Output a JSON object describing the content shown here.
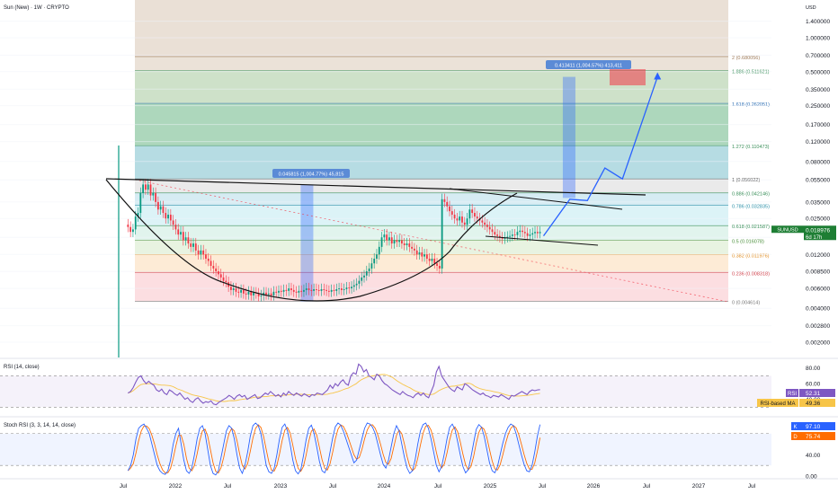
{
  "header": {
    "title": "Sun (New) · 1W · CRYPTO",
    "currency": "USD"
  },
  "colors": {
    "candle_up": "#089981",
    "candle_down": "#f23645",
    "projection": "#2962ff",
    "rsi_line": "#7e57c2",
    "rsi_ma": "#f7c548",
    "stoch_k": "#2962ff",
    "stoch_d": "#ff6d00",
    "price_tag": "#1e7e34"
  },
  "chart_data": [
    {
      "type": "candlestick",
      "title": "Sun (New) · 1W · CRYPTO",
      "y_scale": "log",
      "y_ticks": [
        "1.400000",
        "1.000000",
        "0.700000",
        "0.500000",
        "0.350000",
        "0.250000",
        "0.170000",
        "0.120000",
        "0.080000",
        "0.055000",
        "0.035000",
        "0.025000",
        "0.017000",
        "0.012000",
        "0.008500",
        "0.006000",
        "0.004000",
        "0.002800",
        "0.002000"
      ],
      "x_ticks": [
        "Jul",
        "2022",
        "Jul",
        "2023",
        "Jul",
        "2024",
        "Jul",
        "2025",
        "Jul",
        "2026",
        "Jul",
        "2027",
        "Jul"
      ],
      "last_price": {
        "symbol": "SUNUSD",
        "value": "0.018976",
        "countdown": "6d 17h"
      },
      "fib_levels": [
        {
          "label": "2 (0.680056)",
          "value": 0.680056,
          "fill": "#e8ddd1"
        },
        {
          "label": "1.886 (0.511621)",
          "value": 0.511621,
          "fill": "#c6dcc0"
        },
        {
          "label": "1.618 (0.262051)",
          "value": 0.262051,
          "fill": "#9fd0b0"
        },
        {
          "label": "1.272 (0.110473)",
          "value": 0.110473,
          "fill": "#a9d6de"
        },
        {
          "label": "1 (0.056022)",
          "value": 0.056022,
          "fill": "#e6e6e6"
        },
        {
          "label": "0.886 (0.042146)",
          "value": 0.042146,
          "fill": "#cfe9f1"
        },
        {
          "label": "0.786 (0.032835)",
          "value": 0.032835,
          "fill": "#d6f1f6"
        },
        {
          "label": "0.618 (0.021587)",
          "value": 0.021587,
          "fill": "#dcf2ea"
        },
        {
          "label": "0.5 (0.016078)",
          "value": 0.016078,
          "fill": "#e4f1dc"
        },
        {
          "label": "0.382 (0.011976)",
          "value": 0.011976,
          "fill": "#fde8cf"
        },
        {
          "label": "0.236 (0.008318)",
          "value": 0.008318,
          "fill": "#fcd8dc"
        },
        {
          "label": "0 (0.004614)",
          "value": 0.004614,
          "fill": "#fcd8dc"
        }
      ],
      "fib_label_colors": [
        "#9e7b5a",
        "#3a8f5a",
        "#2b6db3",
        "#3a8f5a",
        "#555555",
        "#3a8f5a",
        "#2b8fa8",
        "#3a8f5a",
        "#4a8f3a",
        "#e08a1a",
        "#d0424c",
        "#777777"
      ],
      "measure_labels": [
        {
          "text": "0.045815 (1,004.77%) 45,815"
        },
        {
          "text": "0.413411 (1,004.57%) 413,411"
        }
      ],
      "candles_close": [
        0.021,
        0.019,
        0.02,
        0.026,
        0.028,
        0.042,
        0.05,
        0.045,
        0.05,
        0.04,
        0.042,
        0.035,
        0.03,
        0.032,
        0.028,
        0.025,
        0.027,
        0.024,
        0.022,
        0.02,
        0.018,
        0.019,
        0.016,
        0.017,
        0.015,
        0.014,
        0.015,
        0.013,
        0.012,
        0.013,
        0.012,
        0.011,
        0.0105,
        0.0095,
        0.009,
        0.0085,
        0.008,
        0.0075,
        0.007,
        0.0068,
        0.0062,
        0.0058,
        0.006,
        0.0056,
        0.0055,
        0.0058,
        0.0054,
        0.0053,
        0.0056,
        0.0052,
        0.0055,
        0.0054,
        0.0051,
        0.0052,
        0.0055,
        0.0053,
        0.0054,
        0.0052,
        0.0056,
        0.0055,
        0.0057,
        0.0056,
        0.0058,
        0.0057,
        0.006,
        0.0058,
        0.0056,
        0.0055,
        0.0057,
        0.0056,
        0.0058,
        0.006,
        0.0058,
        0.0057,
        0.0059,
        0.0058,
        0.0057,
        0.0059,
        0.0058,
        0.0057,
        0.0056,
        0.0058,
        0.0057,
        0.0059,
        0.006,
        0.0058,
        0.0059,
        0.0061,
        0.006,
        0.0062,
        0.0064,
        0.0066,
        0.007,
        0.0075,
        0.0078,
        0.0085,
        0.009,
        0.01,
        0.011,
        0.012,
        0.014,
        0.017,
        0.018,
        0.016,
        0.017,
        0.015,
        0.016,
        0.0155,
        0.016,
        0.015,
        0.0145,
        0.015,
        0.014,
        0.0135,
        0.013,
        0.012,
        0.0125,
        0.0115,
        0.012,
        0.011,
        0.0105,
        0.011,
        0.01,
        0.0095,
        0.009,
        0.037,
        0.035,
        0.032,
        0.029,
        0.027,
        0.025,
        0.024,
        0.026,
        0.023,
        0.022,
        0.025,
        0.03,
        0.028,
        0.026,
        0.025,
        0.024,
        0.023,
        0.022,
        0.021,
        0.02,
        0.019,
        0.018,
        0.0175,
        0.017,
        0.0165,
        0.017,
        0.0172,
        0.0175,
        0.018,
        0.0178,
        0.019,
        0.0195,
        0.019,
        0.0185,
        0.0175,
        0.018,
        0.0185,
        0.019,
        0.0185,
        0.018976
      ],
      "projection_path": [
        {
          "x": "2025-07",
          "y": 0.0175
        },
        {
          "x": "2025-10",
          "y": 0.037
        },
        {
          "x": "2025-12",
          "y": 0.036
        },
        {
          "x": "2026-02",
          "y": 0.07
        },
        {
          "x": "2026-04",
          "y": 0.056
        },
        {
          "x": "2026-08",
          "y": 0.45
        }
      ]
    },
    {
      "type": "line",
      "title": "RSI (14, close)",
      "y_ticks": [
        "80.00",
        "60.00",
        "40.00"
      ],
      "band": [
        30,
        70
      ],
      "series": [
        {
          "name": "RSI",
          "last": "52.31",
          "values": [
            48,
            50,
            55,
            62,
            68,
            70,
            64,
            60,
            63,
            60,
            58,
            52,
            50,
            53,
            48,
            46,
            52,
            50,
            47,
            45,
            48,
            44,
            40,
            42,
            38,
            36,
            40,
            42,
            38,
            35,
            37,
            36,
            38,
            34,
            33,
            36,
            38,
            40,
            42,
            45,
            43,
            40,
            44,
            46,
            43,
            45,
            40,
            42,
            44,
            46,
            41,
            42,
            45,
            48,
            46,
            50,
            47,
            44,
            46,
            43,
            48,
            45,
            50,
            47,
            45,
            48,
            46,
            44,
            47,
            45,
            43,
            46,
            45,
            48,
            47,
            46,
            49,
            52,
            58,
            54,
            60,
            57,
            62,
            65,
            60,
            58,
            70,
            74,
            72,
            85,
            82,
            75,
            78,
            70,
            68,
            65,
            72,
            70,
            64,
            60,
            58,
            55,
            52,
            50,
            48,
            46,
            50,
            47,
            45,
            44,
            42,
            46,
            48,
            45,
            48,
            44,
            42,
            50,
            58,
            75,
            82,
            70,
            65,
            60,
            55,
            52,
            50,
            56,
            54,
            52,
            60,
            58,
            55,
            52,
            50,
            48,
            46,
            48,
            45,
            44,
            42,
            45,
            44,
            43,
            46,
            44,
            42,
            40,
            45,
            44,
            46,
            48,
            50,
            48,
            46,
            50,
            52,
            51,
            52,
            52.31
          ]
        },
        {
          "name": "RSI-based MA",
          "last": "49.36",
          "values": []
        }
      ]
    },
    {
      "type": "line",
      "title": "Stoch RSI (3, 3, 14, 14, close)",
      "y_ticks": [
        "80.00",
        "40.00",
        "0.00"
      ],
      "band": [
        20,
        80
      ],
      "series": [
        {
          "name": "K",
          "last": "97.10",
          "values": [
            10,
            20,
            40,
            70,
            90,
            95,
            98,
            90,
            80,
            60,
            40,
            20,
            10,
            5,
            3,
            10,
            30,
            60,
            80,
            90,
            60,
            30,
            10,
            5,
            15,
            40,
            70,
            90,
            95,
            80,
            50,
            20,
            5,
            2,
            10,
            35,
            60,
            85,
            95,
            90,
            70,
            40,
            15,
            5,
            20,
            45,
            75,
            95,
            100,
            95,
            80,
            50,
            20,
            8,
            5,
            15,
            40,
            70,
            92,
            98,
            85,
            60,
            30,
            10,
            4,
            12,
            38,
            68,
            90,
            96,
            80,
            55,
            28,
            10,
            6,
            18,
            45,
            72,
            93,
            100,
            96,
            85,
            70,
            55,
            40,
            25,
            30,
            50,
            70,
            90,
            100,
            98,
            92,
            80,
            60,
            40,
            22,
            15,
            30,
            55,
            80,
            95,
            85,
            60,
            35,
            15,
            5,
            10,
            30,
            60,
            85,
            97,
            100,
            90,
            70,
            45,
            20,
            8,
            18,
            42,
            70,
            92,
            98,
            88,
            65,
            40,
            18,
            6,
            12,
            35,
            62,
            88,
            97,
            92,
            75,
            50,
            25,
            10,
            6,
            18,
            40,
            62,
            80,
            92,
            98,
            95,
            80,
            60,
            40,
            22,
            10,
            8,
            20,
            45,
            75,
            97.1
          ]
        },
        {
          "name": "D",
          "last": "75.74",
          "values": []
        }
      ]
    }
  ]
}
